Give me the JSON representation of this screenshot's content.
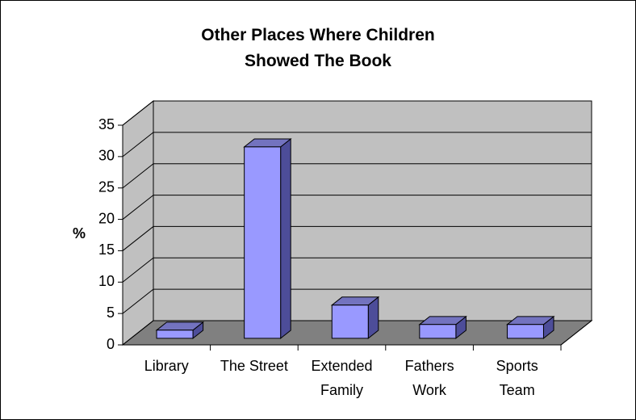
{
  "chart_data": {
    "type": "bar3d",
    "title": "Other Places Where Children Showed The Book",
    "y_label": "%",
    "categories": [
      "Library",
      "The Street",
      "Extended Family",
      "Fathers Work",
      "Sports Team"
    ],
    "values": [
      1.3,
      30.5,
      5.3,
      2.2,
      2.2
    ],
    "color": "#9999ff",
    "ylim": [
      0,
      35
    ],
    "yticks": [
      0,
      5,
      10,
      15,
      20,
      25,
      30,
      35
    ],
    "grid": true
  }
}
